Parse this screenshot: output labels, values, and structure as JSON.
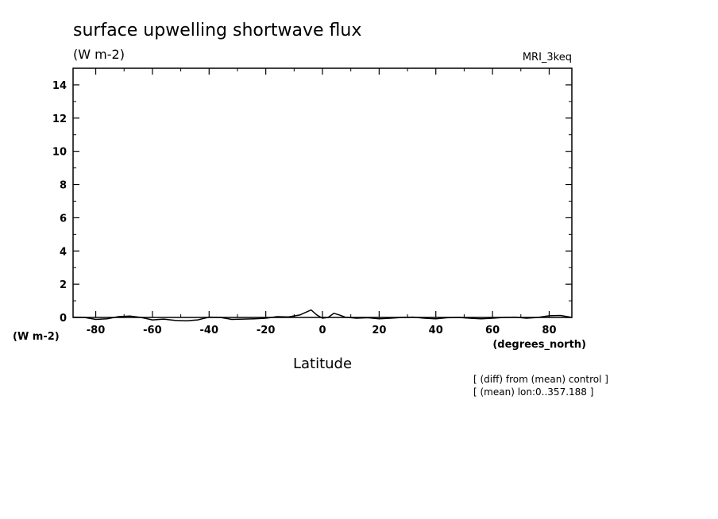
{
  "chart_data": {
    "type": "line",
    "title": "surface upwelling shortwave flux",
    "units": "(W m-2)",
    "model": "MRI_3keq",
    "xlabel": "Latitude",
    "xunits": "(degrees_north)",
    "ylabel_units": "(W m-2)",
    "xlim": [
      -88,
      88
    ],
    "ylim": [
      0,
      15
    ],
    "xticks": [
      -80,
      -60,
      -40,
      -20,
      0,
      20,
      40,
      60,
      80
    ],
    "xtick_labels": [
      "-80",
      "-60",
      "-40",
      "-20",
      "0",
      "20",
      "40",
      "60",
      "80"
    ],
    "yticks": [
      0,
      2,
      4,
      6,
      8,
      10,
      12,
      14
    ],
    "ytick_labels": [
      "0",
      "2",
      "4",
      "6",
      "8",
      "10",
      "12",
      "14"
    ],
    "grid": false,
    "notes": [
      "[ (diff) from (mean) control ]",
      "[ (mean) lon:0..357.188 ]"
    ],
    "series": [
      {
        "x": [
          -88,
          -84,
          -80,
          -76,
          -72,
          -68,
          -64,
          -60,
          -56,
          -52,
          -48,
          -44,
          -40,
          -36,
          -32,
          -28,
          -24,
          -20,
          -16,
          -12,
          -8,
          -4,
          -2,
          0,
          2,
          4,
          6,
          8,
          12,
          16,
          20,
          24,
          28,
          32,
          36,
          40,
          44,
          48,
          52,
          56,
          60,
          64,
          68,
          72,
          76,
          80,
          84,
          88
        ],
        "y": [
          0.02,
          0.0,
          -0.12,
          -0.08,
          0.05,
          0.08,
          0.0,
          -0.15,
          -0.1,
          -0.18,
          -0.2,
          -0.15,
          0.02,
          0.0,
          -0.12,
          -0.1,
          -0.08,
          -0.05,
          0.05,
          0.03,
          0.15,
          0.45,
          0.15,
          -0.05,
          0.0,
          0.25,
          0.15,
          0.02,
          -0.05,
          -0.02,
          -0.08,
          -0.05,
          0.0,
          0.02,
          -0.05,
          -0.08,
          -0.02,
          0.0,
          -0.05,
          -0.08,
          -0.05,
          0.0,
          0.02,
          -0.05,
          0.0,
          0.1,
          0.12,
          0.0
        ]
      }
    ]
  }
}
